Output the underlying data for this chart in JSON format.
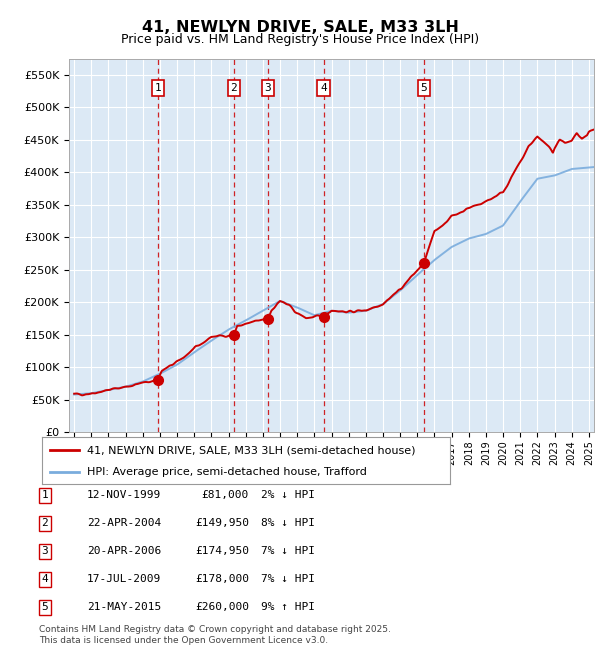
{
  "title": "41, NEWLYN DRIVE, SALE, M33 3LH",
  "subtitle": "Price paid vs. HM Land Registry's House Price Index (HPI)",
  "ylabel_ticks": [
    "£0",
    "£50K",
    "£100K",
    "£150K",
    "£200K",
    "£250K",
    "£300K",
    "£350K",
    "£400K",
    "£450K",
    "£500K",
    "£550K"
  ],
  "ytick_values": [
    0,
    50000,
    100000,
    150000,
    200000,
    250000,
    300000,
    350000,
    400000,
    450000,
    500000,
    550000
  ],
  "ylim": [
    0,
    575000
  ],
  "xlim_start": 1994.7,
  "xlim_end": 2025.3,
  "background_color": "#dce9f5",
  "grid_color": "#ffffff",
  "transactions": [
    {
      "num": 1,
      "date": "12-NOV-1999",
      "price": 81000,
      "year_x": 1999.87
    },
    {
      "num": 2,
      "date": "22-APR-2004",
      "price": 149950,
      "year_x": 2004.31
    },
    {
      "num": 3,
      "date": "20-APR-2006",
      "price": 174950,
      "year_x": 2006.3
    },
    {
      "num": 4,
      "date": "17-JUL-2009",
      "price": 178000,
      "year_x": 2009.54
    },
    {
      "num": 5,
      "date": "21-MAY-2015",
      "price": 260000,
      "year_x": 2015.38
    }
  ],
  "legend_line1": "41, NEWLYN DRIVE, SALE, M33 3LH (semi-detached house)",
  "legend_line2": "HPI: Average price, semi-detached house, Trafford",
  "footnote": "Contains HM Land Registry data © Crown copyright and database right 2025.\nThis data is licensed under the Open Government Licence v3.0.",
  "table_rows": [
    [
      "1",
      "12-NOV-1999",
      "£81,000",
      "2% ↓ HPI"
    ],
    [
      "2",
      "22-APR-2004",
      "£149,950",
      "8% ↓ HPI"
    ],
    [
      "3",
      "20-APR-2006",
      "£174,950",
      "7% ↓ HPI"
    ],
    [
      "4",
      "17-JUL-2009",
      "£178,000",
      "7% ↓ HPI"
    ],
    [
      "5",
      "21-MAY-2015",
      "£260,000",
      "9% ↑ HPI"
    ]
  ],
  "red_line_color": "#cc0000",
  "blue_line_color": "#7aacdd",
  "marker_box_color": "#cc0000",
  "hpi_years": [
    1995,
    1996,
    1997,
    1998,
    1999,
    2000,
    2001,
    2002,
    2003,
    2004,
    2005,
    2006,
    2007,
    2008,
    2009,
    2010,
    2011,
    2012,
    2013,
    2014,
    2015,
    2016,
    2017,
    2018,
    2019,
    2020,
    2021,
    2022,
    2023,
    2024,
    2025.3
  ],
  "hpi_values": [
    58000,
    60000,
    65000,
    70000,
    78000,
    90000,
    104000,
    123000,
    141000,
    158000,
    172000,
    187000,
    202000,
    192000,
    180000,
    187000,
    184000,
    187000,
    197000,
    218000,
    242000,
    265000,
    285000,
    298000,
    305000,
    318000,
    355000,
    390000,
    395000,
    405000,
    408000
  ],
  "pp_years": [
    1995,
    1996,
    1997,
    1998,
    1999.87,
    2000.1,
    2001,
    2002,
    2003,
    2004.31,
    2004.5,
    2006.3,
    2006.5,
    2007,
    2007.5,
    2008,
    2008.5,
    2009.54,
    2009.8,
    2010,
    2011,
    2012,
    2013,
    2014,
    2015.38,
    2015.7,
    2016,
    2017,
    2018,
    2019,
    2020,
    2021,
    2021.5,
    2022,
    2022.3,
    2022.6,
    2022.9,
    2023,
    2023.3,
    2023.6,
    2024,
    2024.3,
    2024.6,
    2024.9,
    2025,
    2025.3
  ],
  "pp_values": [
    58000,
    60000,
    65000,
    70000,
    81000,
    94000,
    108000,
    128000,
    147000,
    149950,
    163000,
    174950,
    188000,
    202000,
    195000,
    183000,
    176000,
    178000,
    184000,
    188000,
    185000,
    188000,
    198000,
    220000,
    260000,
    285000,
    308000,
    332000,
    345000,
    355000,
    370000,
    415000,
    440000,
    455000,
    448000,
    440000,
    430000,
    438000,
    450000,
    445000,
    448000,
    460000,
    450000,
    455000,
    460000,
    465000
  ]
}
